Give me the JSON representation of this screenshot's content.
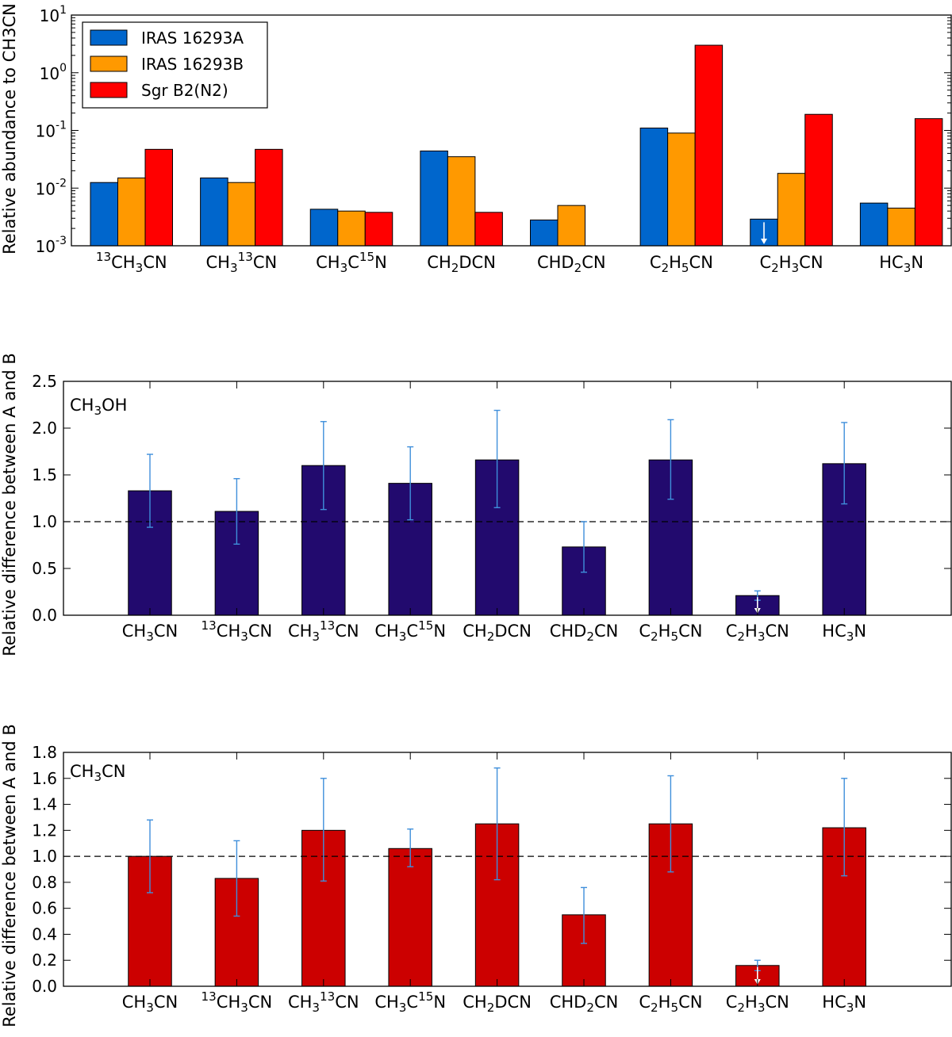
{
  "chart_data": [
    {
      "type": "bar",
      "yscale": "log",
      "ylim": [
        0.001,
        10
      ],
      "ylabel": "Relative abundance to CH3CN",
      "yticks": [
        {
          "base": "10",
          "exp": "-3"
        },
        {
          "base": "10",
          "exp": "-2"
        },
        {
          "base": "10",
          "exp": "-1"
        },
        {
          "base": "10",
          "exp": "0"
        },
        {
          "base": "10",
          "exp": "1"
        }
      ],
      "categories": [
        [
          {
            "t": "13",
            "s": "sup"
          },
          {
            "t": "CH"
          },
          {
            "t": "3",
            "s": "sub"
          },
          {
            "t": "CN"
          }
        ],
        [
          {
            "t": "CH"
          },
          {
            "t": "3",
            "s": "sub"
          },
          {
            "t": "13",
            "s": "sup"
          },
          {
            "t": "CN"
          }
        ],
        [
          {
            "t": "CH"
          },
          {
            "t": "3",
            "s": "sub"
          },
          {
            "t": "C"
          },
          {
            "t": "15",
            "s": "sup"
          },
          {
            "t": "N"
          }
        ],
        [
          {
            "t": "CH"
          },
          {
            "t": "2",
            "s": "sub"
          },
          {
            "t": "DCN"
          }
        ],
        [
          {
            "t": "CHD"
          },
          {
            "t": "2",
            "s": "sub"
          },
          {
            "t": "CN"
          }
        ],
        [
          {
            "t": "C"
          },
          {
            "t": "2",
            "s": "sub"
          },
          {
            "t": "H"
          },
          {
            "t": "5",
            "s": "sub"
          },
          {
            "t": "CN"
          }
        ],
        [
          {
            "t": "C"
          },
          {
            "t": "2",
            "s": "sub"
          },
          {
            "t": "H"
          },
          {
            "t": "3",
            "s": "sub"
          },
          {
            "t": "CN"
          }
        ],
        [
          {
            "t": "HC"
          },
          {
            "t": "3",
            "s": "sub"
          },
          {
            "t": "N"
          }
        ]
      ],
      "series": [
        {
          "name": "IRAS 16293A",
          "color": "#0066cc",
          "values": [
            0.0125,
            0.015,
            0.0043,
            0.044,
            0.0028,
            0.11,
            0.0029,
            0.0055
          ],
          "upper_limit": [
            false,
            false,
            false,
            false,
            false,
            false,
            true,
            false
          ]
        },
        {
          "name": "IRAS 16293B",
          "color": "#ff9900",
          "values": [
            0.015,
            0.0125,
            0.004,
            0.035,
            0.005,
            0.09,
            0.018,
            0.0045
          ],
          "upper_limit": [
            false,
            false,
            false,
            false,
            false,
            false,
            false,
            false
          ]
        },
        {
          "name": "Sgr B2(N2)",
          "color": "#ff0000",
          "values": [
            0.047,
            0.047,
            0.0038,
            0.0038,
            null,
            3.0,
            0.19,
            0.16
          ],
          "upper_limit": [
            false,
            false,
            false,
            false,
            false,
            false,
            false,
            false
          ]
        }
      ],
      "legend": "top-left"
    },
    {
      "type": "bar",
      "annotation": [
        {
          "t": "CH"
        },
        {
          "t": "3",
          "s": "sub"
        },
        {
          "t": "OH"
        }
      ],
      "ylabel": "Relative difference between A and B",
      "ylim": [
        0,
        2.5
      ],
      "yticks": [
        "0.0",
        "0.5",
        "1.0",
        "1.5",
        "2.0",
        "2.5"
      ],
      "reference_line": 1.0,
      "categories": [
        [
          {
            "t": "CH"
          },
          {
            "t": "3",
            "s": "sub"
          },
          {
            "t": "CN"
          }
        ],
        [
          {
            "t": "13",
            "s": "sup"
          },
          {
            "t": "CH"
          },
          {
            "t": "3",
            "s": "sub"
          },
          {
            "t": "CN"
          }
        ],
        [
          {
            "t": "CH"
          },
          {
            "t": "3",
            "s": "sub"
          },
          {
            "t": "13",
            "s": "sup"
          },
          {
            "t": "CN"
          }
        ],
        [
          {
            "t": "CH"
          },
          {
            "t": "3",
            "s": "sub"
          },
          {
            "t": "C"
          },
          {
            "t": "15",
            "s": "sup"
          },
          {
            "t": "N"
          }
        ],
        [
          {
            "t": "CH"
          },
          {
            "t": "2",
            "s": "sub"
          },
          {
            "t": "DCN"
          }
        ],
        [
          {
            "t": "CHD"
          },
          {
            "t": "2",
            "s": "sub"
          },
          {
            "t": "CN"
          }
        ],
        [
          {
            "t": "C"
          },
          {
            "t": "2",
            "s": "sub"
          },
          {
            "t": "H"
          },
          {
            "t": "5",
            "s": "sub"
          },
          {
            "t": "CN"
          }
        ],
        [
          {
            "t": "C"
          },
          {
            "t": "2",
            "s": "sub"
          },
          {
            "t": "H"
          },
          {
            "t": "3",
            "s": "sub"
          },
          {
            "t": "CN"
          }
        ],
        [
          {
            "t": "HC"
          },
          {
            "t": "3",
            "s": "sub"
          },
          {
            "t": "N"
          }
        ]
      ],
      "bar_color": "#220a6e",
      "error_color": "#3f8fdb",
      "values": [
        1.33,
        1.11,
        1.6,
        1.41,
        1.66,
        0.73,
        1.66,
        0.21,
        1.62
      ],
      "errors": [
        [
          0.94,
          1.72
        ],
        [
          0.76,
          1.46
        ],
        [
          1.13,
          2.07
        ],
        [
          1.02,
          1.8
        ],
        [
          1.15,
          2.19
        ],
        [
          0.46,
          1.0
        ],
        [
          1.24,
          2.09
        ],
        [
          0.16,
          0.26
        ],
        [
          1.19,
          2.06
        ]
      ],
      "upper_limit": [
        false,
        false,
        false,
        false,
        false,
        false,
        false,
        true,
        false
      ]
    },
    {
      "type": "bar",
      "annotation": [
        {
          "t": "CH"
        },
        {
          "t": "3",
          "s": "sub"
        },
        {
          "t": "CN"
        }
      ],
      "ylabel": "Relative difference between A and B",
      "ylim": [
        0,
        1.8
      ],
      "yticks": [
        "0.0",
        "0.2",
        "0.4",
        "0.6",
        "0.8",
        "1.0",
        "1.2",
        "1.4",
        "1.6",
        "1.8"
      ],
      "reference_line": 1.0,
      "categories": [
        [
          {
            "t": "CH"
          },
          {
            "t": "3",
            "s": "sub"
          },
          {
            "t": "CN"
          }
        ],
        [
          {
            "t": "13",
            "s": "sup"
          },
          {
            "t": "CH"
          },
          {
            "t": "3",
            "s": "sub"
          },
          {
            "t": "CN"
          }
        ],
        [
          {
            "t": "CH"
          },
          {
            "t": "3",
            "s": "sub"
          },
          {
            "t": "13",
            "s": "sup"
          },
          {
            "t": "CN"
          }
        ],
        [
          {
            "t": "CH"
          },
          {
            "t": "3",
            "s": "sub"
          },
          {
            "t": "C"
          },
          {
            "t": "15",
            "s": "sup"
          },
          {
            "t": "N"
          }
        ],
        [
          {
            "t": "CH"
          },
          {
            "t": "2",
            "s": "sub"
          },
          {
            "t": "DCN"
          }
        ],
        [
          {
            "t": "CHD"
          },
          {
            "t": "2",
            "s": "sub"
          },
          {
            "t": "CN"
          }
        ],
        [
          {
            "t": "C"
          },
          {
            "t": "2",
            "s": "sub"
          },
          {
            "t": "H"
          },
          {
            "t": "5",
            "s": "sub"
          },
          {
            "t": "CN"
          }
        ],
        [
          {
            "t": "C"
          },
          {
            "t": "2",
            "s": "sub"
          },
          {
            "t": "H"
          },
          {
            "t": "3",
            "s": "sub"
          },
          {
            "t": "CN"
          }
        ],
        [
          {
            "t": "HC"
          },
          {
            "t": "3",
            "s": "sub"
          },
          {
            "t": "N"
          }
        ]
      ],
      "bar_color": "#cc0000",
      "error_color": "#3f8fdb",
      "values": [
        1.0,
        0.83,
        1.2,
        1.06,
        1.25,
        0.55,
        1.25,
        0.16,
        1.22
      ],
      "errors": [
        [
          0.72,
          1.28
        ],
        [
          0.54,
          1.12
        ],
        [
          0.81,
          1.6
        ],
        [
          0.92,
          1.21
        ],
        [
          0.82,
          1.68
        ],
        [
          0.33,
          0.76
        ],
        [
          0.88,
          1.62
        ],
        [
          0.12,
          0.2
        ],
        [
          0.85,
          1.6
        ]
      ],
      "upper_limit": [
        false,
        false,
        false,
        false,
        false,
        false,
        false,
        true,
        false
      ]
    }
  ]
}
